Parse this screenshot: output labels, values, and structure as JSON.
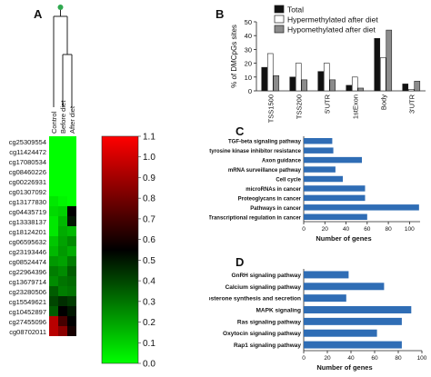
{
  "panels": {
    "a": "A",
    "b": "B",
    "c": "C",
    "d": "D"
  },
  "chart_data": [
    {
      "id": "A",
      "type": "heatmap",
      "columns": [
        "Control",
        "Before diet",
        "After diet"
      ],
      "rows": [
        "cg25309554",
        "cg11424472",
        "cg17080534",
        "cg08460226",
        "cg00226931",
        "cg01307092",
        "cg13177830",
        "cg04435719",
        "cg13338137",
        "cg18124201",
        "cg06595632",
        "cg23193446",
        "cg08524474",
        "cg22964396",
        "cg13679714",
        "cg23280506",
        "cg15549621",
        "cg10452897",
        "cg27455096",
        "cg08702011"
      ],
      "values": [
        [
          0.0,
          0.0,
          0.0
        ],
        [
          0.0,
          0.0,
          0.0
        ],
        [
          0.0,
          0.0,
          0.0
        ],
        [
          0.0,
          0.0,
          0.0
        ],
        [
          0.0,
          0.0,
          0.0
        ],
        [
          0.0,
          0.0,
          0.0
        ],
        [
          0.05,
          0.02,
          0.0
        ],
        [
          0.08,
          0.1,
          0.55
        ],
        [
          0.05,
          0.15,
          0.5
        ],
        [
          0.05,
          0.18,
          0.15
        ],
        [
          0.12,
          0.2,
          0.25
        ],
        [
          0.15,
          0.22,
          0.18
        ],
        [
          0.22,
          0.2,
          0.28
        ],
        [
          0.28,
          0.25,
          0.35
        ],
        [
          0.25,
          0.3,
          0.32
        ],
        [
          0.35,
          0.28,
          0.3
        ],
        [
          0.4,
          0.45,
          0.42
        ],
        [
          0.35,
          0.55,
          0.5
        ],
        [
          0.95,
          0.7,
          0.55
        ],
        [
          0.95,
          0.85,
          0.6
        ]
      ],
      "colorbar": {
        "ticks": [
          "1.1",
          "1.0",
          "0.9",
          "0.8",
          "0.7",
          "0.6",
          "0.5",
          "0.4",
          "0.3",
          "0.2",
          "0.1",
          "0.0"
        ],
        "low_color": "#00ff00",
        "mid_color": "#000000",
        "high_color": "#ff0000",
        "range": [
          0.0,
          1.1
        ]
      }
    },
    {
      "id": "B",
      "type": "bar",
      "categories": [
        "TSS1500",
        "TSS200",
        "5'UTR",
        "1stExon",
        "Body",
        "3'UTR"
      ],
      "series": [
        {
          "name": "Total",
          "color": "#111111",
          "values": [
            17,
            10,
            14,
            4,
            38,
            5
          ]
        },
        {
          "name": "Hypermethylated after diet",
          "color": "#ffffff",
          "values": [
            27,
            20,
            20,
            10,
            24,
            1
          ]
        },
        {
          "name": "Hypomethylated after diet",
          "color": "#8c8c8c",
          "values": [
            11,
            8,
            8,
            2,
            44,
            7
          ]
        }
      ],
      "ylabel": "% of DMCpGs sites",
      "ylim": [
        0,
        50
      ],
      "yticks": [
        "0",
        "10",
        "20",
        "30",
        "40",
        "50"
      ]
    },
    {
      "id": "C",
      "type": "bar",
      "orientation": "horizontal",
      "color": "#2f6db5",
      "categories": [
        "TGF-beta signaling pathway",
        "EGFR tyrosine kinase inhibitor resistance",
        "Axon guidance",
        "mRNA surveillance pathway",
        "Cell cycle",
        "microRNAs in cancer",
        "Proteoglycans in cancer",
        "Pathways in cancer",
        "Transcriptional regulation in cancer"
      ],
      "values": [
        27,
        28,
        55,
        30,
        37,
        58,
        58,
        109,
        60
      ],
      "xlabel": "Number of genes",
      "xlim": [
        0,
        110
      ],
      "xticks": [
        "0",
        "20",
        "40",
        "60",
        "80",
        "100"
      ]
    },
    {
      "id": "D",
      "type": "bar",
      "orientation": "horizontal",
      "color": "#2f6db5",
      "categories": [
        "GnRH signaling pathway",
        "Calcium signaling pathway",
        "Aldosterone synthesis and secretion",
        "MAPK signaling",
        "Ras signaling pathway",
        "Oxytocin signaling pathway",
        "Rap1 signaling pathway"
      ],
      "values": [
        38,
        68,
        36,
        91,
        83,
        62,
        83
      ],
      "xlabel": "Number of genes",
      "xlim": [
        0,
        100
      ],
      "xticks": [
        "0",
        "20",
        "40",
        "60",
        "80",
        "100"
      ]
    }
  ]
}
